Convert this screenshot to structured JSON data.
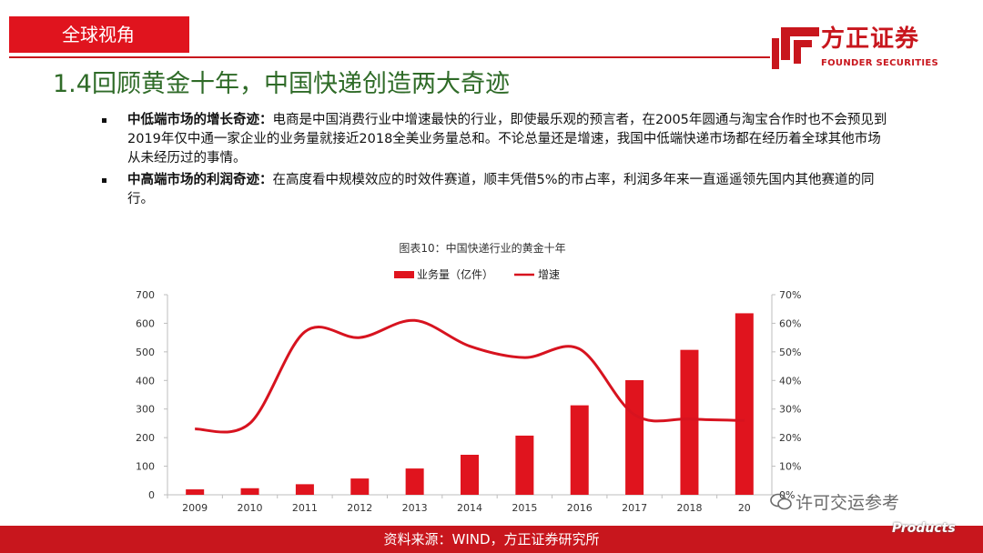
{
  "header": {
    "section_label": "全球视角",
    "logo_cn": "方正证券",
    "logo_en": "FOUNDER SECURITIES",
    "accent_color": "#c8161d"
  },
  "page_title": "1.4回顾黄金十年，中国快递创造两大奇迹",
  "bullets": [
    {
      "heading": "中低端市场的增长奇迹：",
      "body": "电商是中国消费行业中增速最快的行业，即使最乐观的预言者，在2005年圆通与淘宝合作时也不会预见到2019年仅中通一家企业的业务量就接近2018全美业务量总和。不论总量还是增速，我国中低端快递市场都在经历着全球其他市场从未经历过的事情。"
    },
    {
      "heading": "中高端市场的利润奇迹：",
      "body": "在高度看中规模效应的时效件赛道，顺丰凭借5%的市占率，利润多年来一直遥遥领先国内其他赛道的同行。"
    }
  ],
  "chart_data": {
    "type": "bar",
    "title": "图表10：中国快递行业的黄金十年",
    "categories": [
      "2009",
      "2010",
      "2011",
      "2012",
      "2013",
      "2014",
      "2015",
      "2016",
      "2017",
      "2018",
      "20"
    ],
    "series": [
      {
        "name": "业务量（亿件）",
        "type": "bar",
        "axis": "left",
        "color": "#e0141e",
        "values": [
          19,
          23,
          37,
          57,
          92,
          140,
          207,
          313,
          401,
          507,
          635
        ]
      },
      {
        "name": "增速",
        "type": "line",
        "axis": "right",
        "color": "#d7131f",
        "values": [
          0.23,
          0.25,
          0.57,
          0.55,
          0.61,
          0.52,
          0.48,
          0.51,
          0.28,
          0.265,
          0.26
        ]
      }
    ],
    "left_axis": {
      "min": 0,
      "max": 700,
      "ticks": [
        "0",
        "100",
        "200",
        "300",
        "400",
        "500",
        "600",
        "700"
      ]
    },
    "right_axis": {
      "min": 0,
      "max": 0.7,
      "ticks": [
        "0%",
        "10%",
        "20%",
        "30%",
        "40%",
        "50%",
        "60%",
        "70%"
      ]
    },
    "legend_position": "top",
    "grid": false
  },
  "footer": {
    "source": "资料来源：WIND，方正证券研究所"
  },
  "watermarks": {
    "wechat": "许可交运参考",
    "site": "Products"
  }
}
